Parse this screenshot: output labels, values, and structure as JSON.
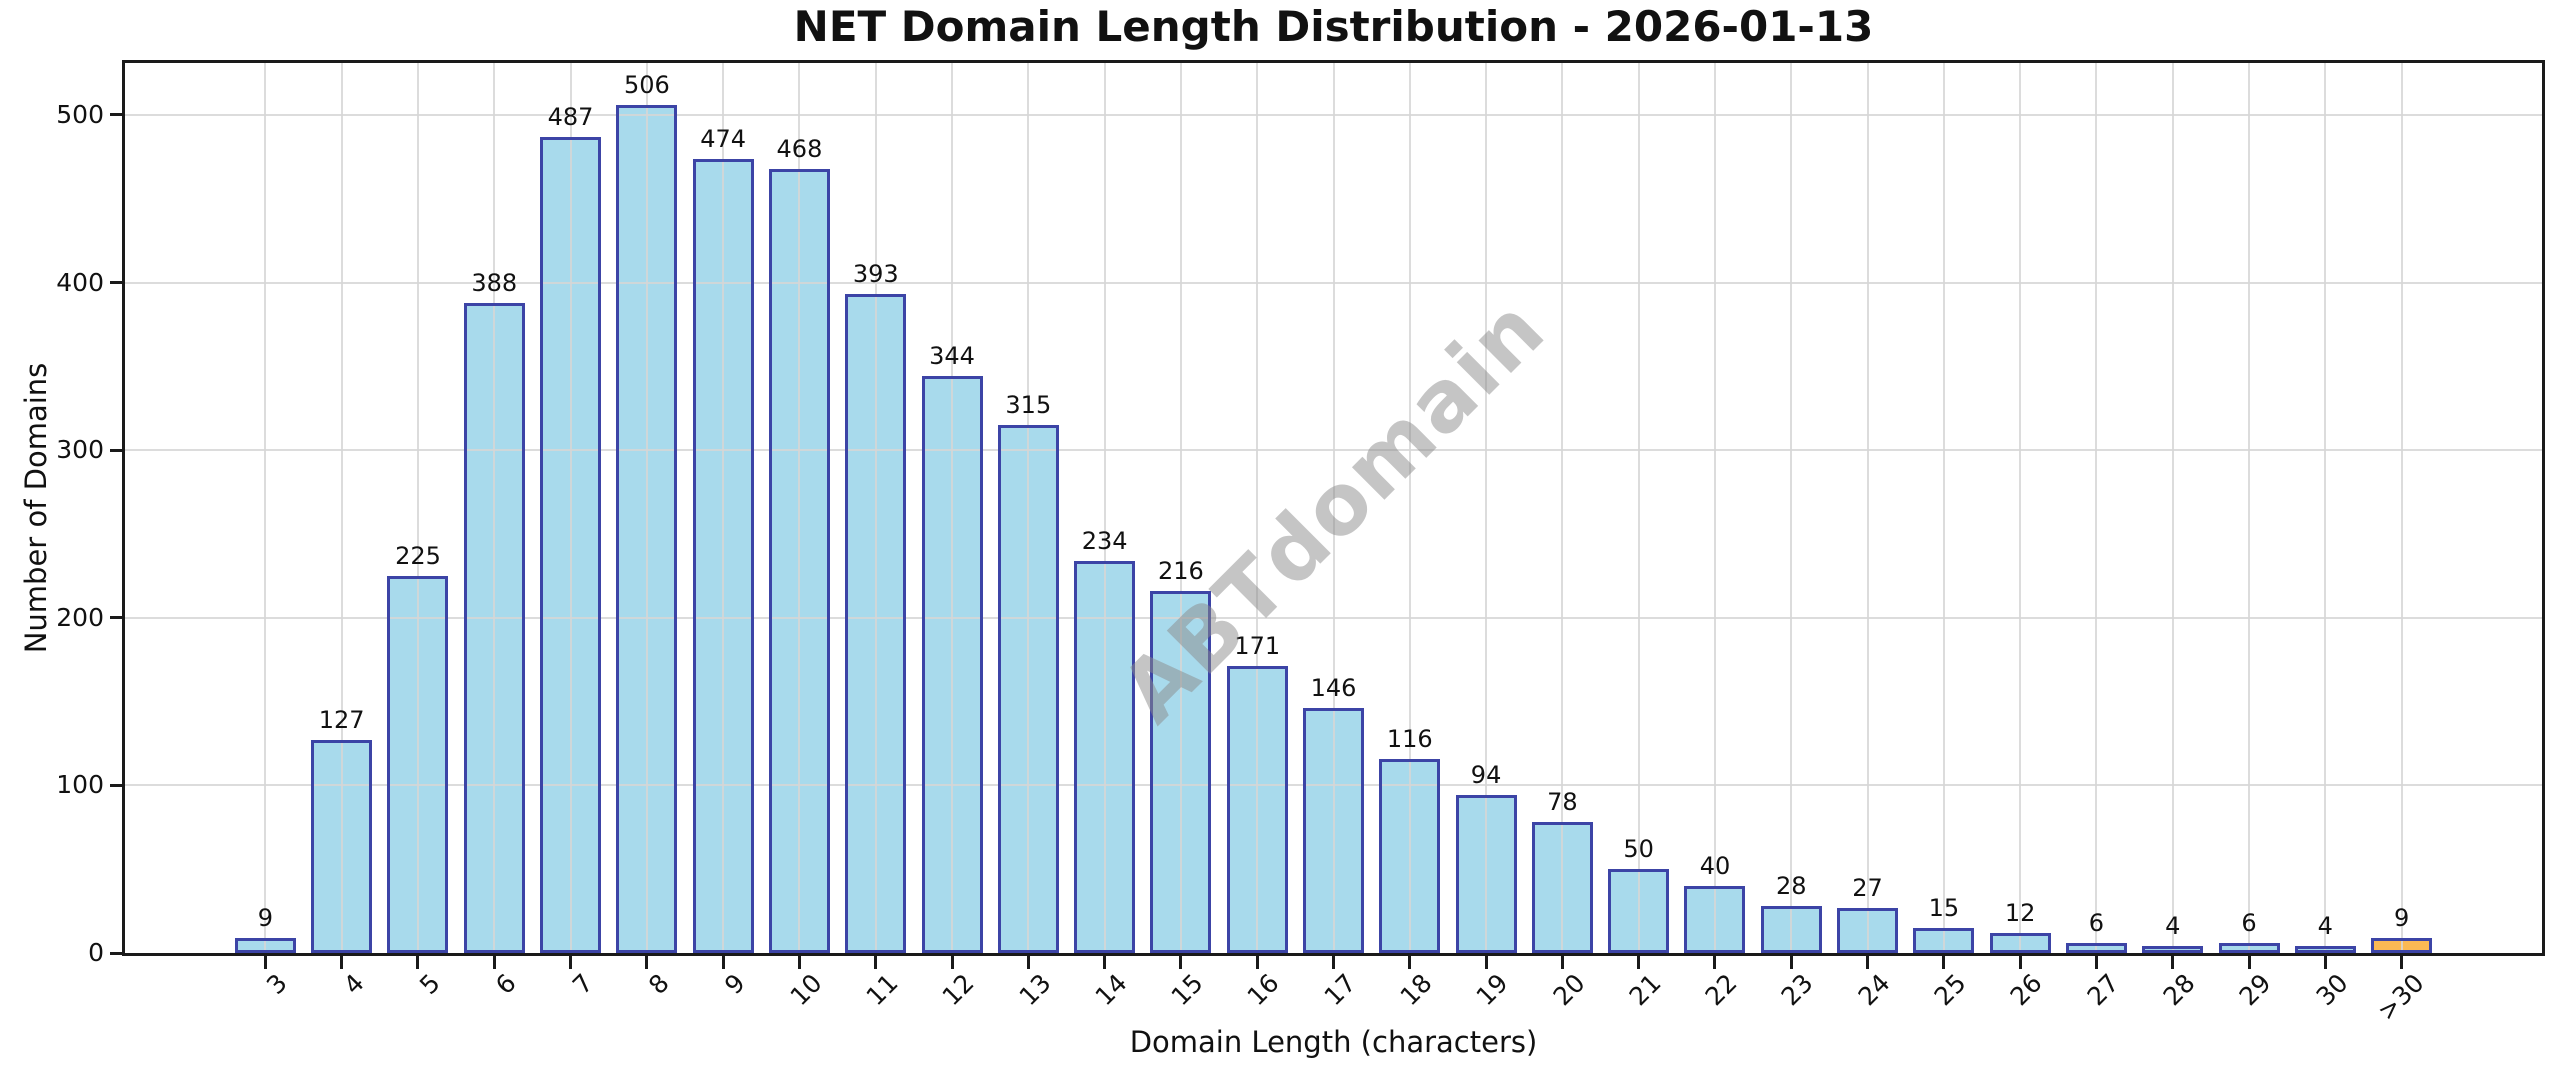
{
  "chart_data": {
    "type": "bar",
    "title": "NET Domain Length Distribution - 2026-01-13",
    "xlabel": "Domain Length (characters)",
    "ylabel": "Number of Domains",
    "watermark": "ABTdomain",
    "categories": [
      "3",
      "4",
      "5",
      "6",
      "7",
      "8",
      "9",
      "10",
      "11",
      "12",
      "13",
      "14",
      "15",
      "16",
      "17",
      "18",
      "19",
      "20",
      "21",
      "22",
      "23",
      "24",
      "25",
      "26",
      "27",
      "28",
      "29",
      "30",
      ">30"
    ],
    "values": [
      9,
      127,
      225,
      388,
      487,
      506,
      474,
      468,
      393,
      344,
      315,
      234,
      216,
      171,
      146,
      116,
      94,
      78,
      50,
      40,
      28,
      27,
      15,
      12,
      6,
      4,
      6,
      4,
      9
    ],
    "highlight_category": ">30",
    "yticks": [
      0,
      100,
      200,
      300,
      400,
      500
    ],
    "ylim": [
      0,
      531
    ],
    "grid": true,
    "value_labels": true,
    "legend_position": "none",
    "colors": {
      "bar_fill": "#A8DAEC",
      "bar_edge": "#3C44A6",
      "highlight_fill": "#FBB954",
      "highlight_edge": "#3C44A6",
      "grid": "#D6D6D6",
      "spine": "#1A1A1A",
      "text": "#111111",
      "watermark": "#8C8C8C",
      "background": "#FFFFFF"
    }
  }
}
